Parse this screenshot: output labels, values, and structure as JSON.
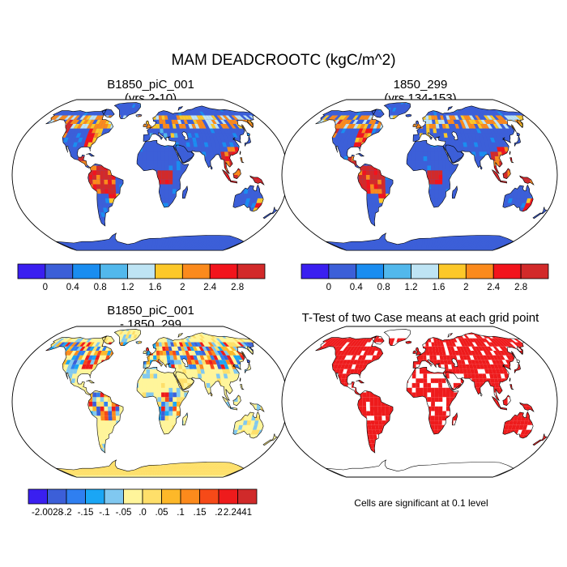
{
  "main_title": "MAM DEADCROOTC (kgC/m^2)",
  "panels": [
    {
      "id": "case1",
      "title": "B1850_piC_001",
      "subtitle": "(yrs 2-10)"
    },
    {
      "id": "case2",
      "title": "1850_299",
      "subtitle": "(yrs 134-153)"
    },
    {
      "id": "diff",
      "title": "B1850_piC_001",
      "subtitle": "- 1850_299"
    },
    {
      "id": "ttest",
      "title": "T-Test of two Case means at each grid point",
      "subtitle": ""
    }
  ],
  "significance_note": "Cells are significant at 0.1 level",
  "chart_data": [
    {
      "type": "heatmap",
      "title": "B1850_piC_001 (yrs 2-10)",
      "projection": "Robinson",
      "colorbar": {
        "tick_labels": [
          "0",
          "0.4",
          "0.8",
          "1.2",
          "1.6",
          "2",
          "2.4",
          "2.8"
        ],
        "levels": [
          0,
          0.4,
          0.8,
          1.2,
          1.6,
          2,
          2.4,
          2.8
        ],
        "colors": [
          "#3a1ff0",
          "#3c5fd8",
          "#1a8df0",
          "#52b8ec",
          "#bee4f4",
          "#fcc829",
          "#fb8a1c",
          "#f2141c",
          "#d22a2a"
        ]
      }
    },
    {
      "type": "heatmap",
      "title": "1850_299 (yrs 134-153)",
      "projection": "Robinson",
      "colorbar": {
        "tick_labels": [
          "0",
          "0.4",
          "0.8",
          "1.2",
          "1.6",
          "2",
          "2.4",
          "2.8"
        ],
        "levels": [
          0,
          0.4,
          0.8,
          1.2,
          1.6,
          2,
          2.4,
          2.8
        ],
        "colors": [
          "#3a1ff0",
          "#3c5fd8",
          "#1a8df0",
          "#52b8ec",
          "#bee4f4",
          "#fcc829",
          "#fb8a1c",
          "#f2141c",
          "#d22a2a"
        ]
      }
    },
    {
      "type": "heatmap",
      "title": "B1850_piC_001 - 1850_299",
      "projection": "Robinson",
      "colorbar": {
        "tick_labels": [
          "-2.0028",
          "-.2",
          "-.15",
          "-.1",
          "-.05",
          ".0",
          ".05",
          ".1",
          ".15",
          ".2",
          "2.2441"
        ],
        "levels": [
          -2.0028,
          -0.2,
          -0.15,
          -0.1,
          -0.05,
          0,
          0.05,
          0.1,
          0.15,
          0.2,
          2.2441
        ],
        "colors": [
          "#3a1ff0",
          "#3c5fd8",
          "#2f7ff0",
          "#1aa6f5",
          "#80c8f0",
          "#fff59b",
          "#fedf6a",
          "#fdb829",
          "#fc8a1c",
          "#f64a18",
          "#ee1b1c",
          "#d02a2a"
        ]
      }
    },
    {
      "type": "heatmap",
      "title": "T-Test of two Case means at each grid point",
      "projection": "Robinson",
      "significant_color": "#ee1b1c"
    }
  ]
}
